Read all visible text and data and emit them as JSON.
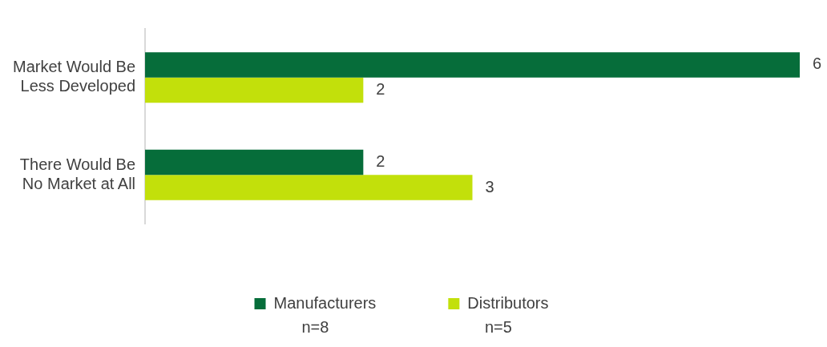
{
  "chart_data": {
    "type": "bar",
    "orientation": "horizontal",
    "categories": [
      "Market Would Be Less Developed",
      "There Would Be No Market at All"
    ],
    "series": [
      {
        "name": "Manufacturers",
        "color": "#066d3a",
        "values": [
          6,
          2
        ]
      },
      {
        "name": "Distributors",
        "color": "#c2e00b",
        "values": [
          2,
          3
        ]
      }
    ],
    "xlim": [
      0,
      6
    ],
    "data_labels": true,
    "grid": false,
    "legend": "bottom",
    "tick_labels": "y",
    "annotations": [
      "n=8",
      "n=5"
    ]
  }
}
